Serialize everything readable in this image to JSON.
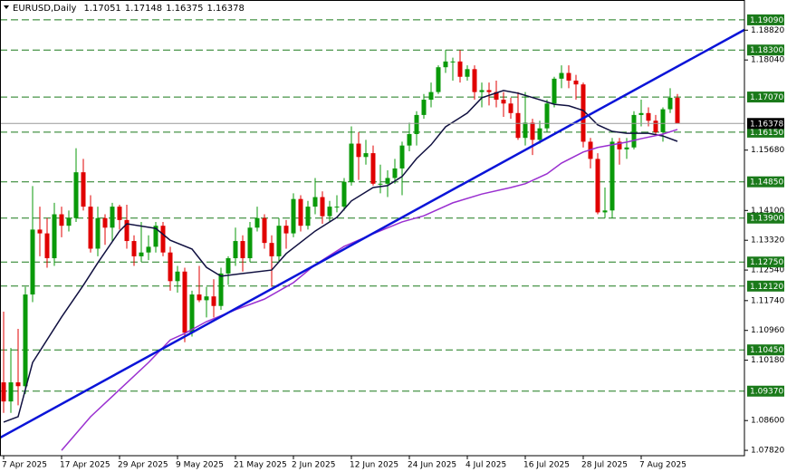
{
  "chart_data": {
    "type": "candlestick",
    "symbol": "EURUSD,Daily",
    "categories": [
      "7 Apr 2025",
      null,
      null,
      null,
      null,
      null,
      null,
      null,
      "17 Apr 2025",
      null,
      null,
      null,
      null,
      null,
      null,
      null,
      "29 Apr 2025",
      null,
      null,
      null,
      null,
      null,
      null,
      null,
      "9 May 2025",
      null,
      null,
      null,
      null,
      null,
      null,
      null,
      "21 May 2025",
      null,
      null,
      null,
      null,
      null,
      null,
      null,
      "2 Jun 2025",
      null,
      null,
      null,
      null,
      null,
      null,
      null,
      "12 Jun 2025",
      null,
      null,
      null,
      null,
      null,
      null,
      null,
      "24 Jun 2025",
      null,
      null,
      null,
      null,
      null,
      null,
      null,
      "4 Jul 2025",
      null,
      null,
      null,
      null,
      null,
      null,
      null,
      "16 Jul 2025",
      null,
      null,
      null,
      null,
      null,
      null,
      null,
      "28 Jul 2025",
      null,
      null,
      null,
      null,
      null,
      null,
      null,
      "7 Aug 2025",
      null,
      null,
      null,
      null,
      null
    ],
    "open": [
      1.096,
      1.091,
      1.096,
      1.095,
      1.119,
      1.136,
      1.135,
      1.1285,
      1.14,
      1.137,
      1.139,
      1.151,
      1.142,
      1.131,
      1.139,
      1.1365,
      1.142,
      1.1385,
      1.133,
      1.129,
      1.13,
      1.1315,
      1.137,
      1.13,
      1.1225,
      1.125,
      1.109,
      1.119,
      1.1175,
      1.1185,
      1.116,
      1.1245,
      1.1285,
      1.133,
      1.1285,
      1.1365,
      1.139,
      1.1325,
      1.129,
      1.137,
      1.135,
      1.144,
      1.137,
      1.142,
      1.1445,
      1.1395,
      1.142,
      1.142,
      1.1485,
      1.1585,
      1.155,
      1.156,
      1.148,
      1.148,
      1.1495,
      1.152,
      1.158,
      1.161,
      1.166,
      1.17,
      1.172,
      1.1785,
      1.18,
      1.18,
      1.176,
      1.178,
      1.172,
      1.1725,
      1.172,
      1.17,
      1.169,
      1.1665,
      1.16,
      1.164,
      1.1595,
      1.1625,
      1.169,
      1.1755,
      1.177,
      1.175,
      1.174,
      1.159,
      1.1545,
      1.1405,
      1.141,
      1.159,
      1.157,
      1.1575,
      1.166,
      1.1665,
      1.1645,
      1.1615,
      1.1675,
      1.17051
    ],
    "high": [
      1.1145,
      1.105,
      1.11,
      1.121,
      1.1474,
      1.142,
      1.139,
      1.143,
      1.142,
      1.141,
      1.1573,
      1.1545,
      1.145,
      1.142,
      1.14,
      1.143,
      1.1425,
      1.1425,
      1.1345,
      1.138,
      1.1345,
      1.138,
      1.138,
      1.1315,
      1.1265,
      1.126,
      1.12,
      1.1265,
      1.121,
      1.123,
      1.126,
      1.129,
      1.1365,
      1.1345,
      1.138,
      1.142,
      1.14,
      1.1345,
      1.139,
      1.1385,
      1.1455,
      1.145,
      1.1435,
      1.1495,
      1.146,
      1.1435,
      1.145,
      1.1495,
      1.163,
      1.1615,
      1.1595,
      1.158,
      1.153,
      1.1515,
      1.1545,
      1.159,
      1.164,
      1.167,
      1.1715,
      1.1745,
      1.179,
      1.183,
      1.181,
      1.183,
      1.179,
      1.179,
      1.1745,
      1.1745,
      1.175,
      1.172,
      1.1705,
      1.172,
      1.172,
      1.165,
      1.1645,
      1.17,
      1.176,
      1.179,
      1.179,
      1.1765,
      1.1745,
      1.16,
      1.156,
      1.147,
      1.16,
      1.16,
      1.16,
      1.167,
      1.17,
      1.168,
      1.166,
      1.168,
      1.173,
      1.17148
    ],
    "low": [
      1.088,
      1.088,
      1.09,
      1.093,
      1.117,
      1.129,
      1.126,
      1.1265,
      1.134,
      1.1355,
      1.138,
      1.141,
      1.13,
      1.129,
      1.132,
      1.133,
      1.136,
      1.131,
      1.1265,
      1.1275,
      1.128,
      1.13,
      1.129,
      1.12,
      1.1195,
      1.1065,
      1.108,
      1.117,
      1.113,
      1.113,
      1.115,
      1.1215,
      1.1265,
      1.125,
      1.1275,
      1.1355,
      1.131,
      1.121,
      1.1275,
      1.131,
      1.134,
      1.1355,
      1.136,
      1.14,
      1.1375,
      1.138,
      1.1405,
      1.141,
      1.1475,
      1.149,
      1.153,
      1.1475,
      1.1455,
      1.1445,
      1.148,
      1.145,
      1.1565,
      1.158,
      1.165,
      1.168,
      1.1715,
      1.177,
      1.175,
      1.1745,
      1.175,
      1.17,
      1.168,
      1.1685,
      1.168,
      1.1655,
      1.165,
      1.1595,
      1.158,
      1.1555,
      1.1585,
      1.1615,
      1.168,
      1.173,
      1.173,
      1.17,
      1.1575,
      1.152,
      1.14,
      1.139,
      1.139,
      1.153,
      1.1545,
      1.157,
      1.163,
      1.163,
      1.1605,
      1.159,
      1.1665,
      1.16375
    ],
    "close": [
      1.091,
      1.096,
      1.095,
      1.119,
      1.136,
      1.135,
      1.1285,
      1.14,
      1.137,
      1.139,
      1.151,
      1.142,
      1.131,
      1.139,
      1.1365,
      1.142,
      1.1385,
      1.133,
      1.129,
      1.13,
      1.1315,
      1.137,
      1.13,
      1.1225,
      1.125,
      1.109,
      1.119,
      1.1175,
      1.1185,
      1.116,
      1.1245,
      1.1285,
      1.133,
      1.1285,
      1.1365,
      1.139,
      1.1325,
      1.129,
      1.137,
      1.135,
      1.144,
      1.137,
      1.142,
      1.1445,
      1.1395,
      1.142,
      1.142,
      1.1485,
      1.1585,
      1.155,
      1.156,
      1.148,
      1.148,
      1.1495,
      1.152,
      1.158,
      1.161,
      1.166,
      1.17,
      1.172,
      1.1785,
      1.18,
      1.18,
      1.176,
      1.178,
      1.172,
      1.1725,
      1.172,
      1.17,
      1.169,
      1.1665,
      1.16,
      1.164,
      1.1595,
      1.1625,
      1.169,
      1.1755,
      1.177,
      1.175,
      1.174,
      1.159,
      1.1545,
      1.1405,
      1.141,
      1.159,
      1.157,
      1.1575,
      1.166,
      1.1665,
      1.1645,
      1.1615,
      1.1675,
      1.1705,
      1.16378
    ],
    "up_color": "#0a9a0a",
    "down_color": "#e00000",
    "xlim": [
      -0.5,
      102.25
    ],
    "ylim": [
      1.0768,
      1.1961
    ],
    "yticks": [
      {
        "value": 1.1882,
        "label": "1.18820"
      },
      {
        "value": 1.1804,
        "label": "1.18040"
      },
      {
        "value": 1.1568,
        "label": "1.15680"
      },
      {
        "value": 1.141,
        "label": "1.14100"
      },
      {
        "value": 1.1332,
        "label": "1.13320"
      },
      {
        "value": 1.1254,
        "label": "1.12540"
      },
      {
        "value": 1.1174,
        "label": "1.11740"
      },
      {
        "value": 1.1096,
        "label": "1.10960"
      },
      {
        "value": 1.1018,
        "label": "1.10180"
      },
      {
        "value": 1.086,
        "label": "1.08600"
      },
      {
        "value": 1.0782,
        "label": "1.07820"
      }
    ],
    "levels": [
      {
        "value": 1.1909,
        "label": "1.19090"
      },
      {
        "value": 1.183,
        "label": "1.18300"
      },
      {
        "value": 1.1707,
        "label": "1.17070"
      },
      {
        "value": 1.1615,
        "label": "1.16150"
      },
      {
        "value": 1.1485,
        "label": "1.14850"
      },
      {
        "value": 1.139,
        "label": "1.13900"
      },
      {
        "value": 1.1275,
        "label": "1.12750"
      },
      {
        "value": 1.1212,
        "label": "1.12120"
      },
      {
        "value": 1.1045,
        "label": "1.10450"
      },
      {
        "value": 1.0937,
        "label": "1.09370"
      }
    ],
    "level_color": "#1a7a1a",
    "lines": [
      {
        "color": "#101040",
        "x": [
          0,
          2,
          4,
          8,
          11,
          13,
          16,
          17,
          21,
          23,
          26,
          28,
          30,
          33,
          37,
          39,
          43,
          46,
          48,
          51,
          53,
          55,
          57,
          59,
          61,
          64,
          66,
          69,
          71,
          74,
          76,
          78,
          80,
          82,
          84,
          86,
          89,
          91,
          93
        ],
        "values": [
          1.0856,
          1.087,
          1.1012,
          1.1131,
          1.1214,
          1.1273,
          1.1356,
          1.1375,
          1.1363,
          1.1332,
          1.1309,
          1.1261,
          1.1238,
          1.1245,
          1.1254,
          1.1297,
          1.1356,
          1.1392,
          1.1435,
          1.147,
          1.1475,
          1.1499,
          1.1546,
          1.1582,
          1.1629,
          1.1665,
          1.1705,
          1.1724,
          1.1717,
          1.17,
          1.1688,
          1.1684,
          1.1672,
          1.1634,
          1.1617,
          1.1612,
          1.1612,
          1.1605,
          1.1591
        ]
      },
      {
        "color": "#9a30d0",
        "x": [
          8,
          12,
          16,
          20,
          23,
          25,
          28,
          32,
          36,
          40,
          43,
          47,
          51,
          55,
          58,
          62,
          66,
          70,
          72,
          75,
          77,
          80,
          82,
          86,
          88,
          91,
          93
        ],
        "values": [
          1.0782,
          1.087,
          1.0941,
          1.1012,
          1.1071,
          1.1088,
          1.1119,
          1.115,
          1.1178,
          1.1221,
          1.1268,
          1.1316,
          1.1349,
          1.138,
          1.1396,
          1.143,
          1.1453,
          1.147,
          1.148,
          1.1506,
          1.1534,
          1.1563,
          1.1575,
          1.1589,
          1.1598,
          1.161,
          1.1622
        ]
      }
    ],
    "trendline": {
      "color": "#0a14d8",
      "x": [
        -0.5,
        102.25
      ],
      "values": [
        1.0815,
        1.1883
      ]
    }
  }
}
